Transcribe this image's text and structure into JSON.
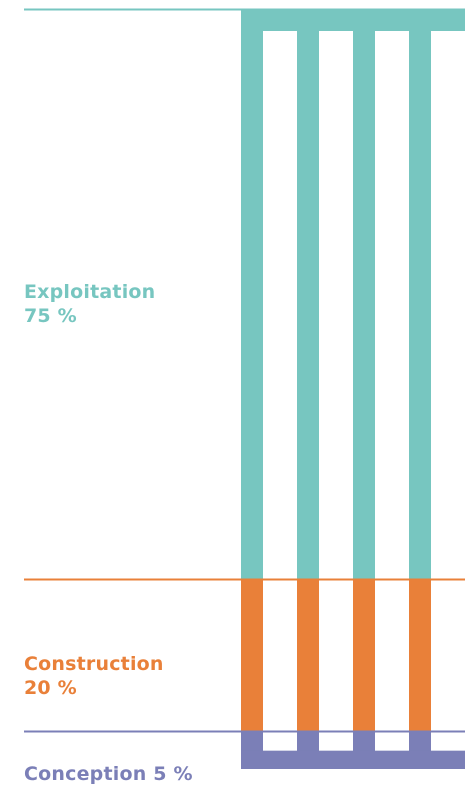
{
  "chart_data": {
    "type": "bar",
    "orientation": "stacked-vertical",
    "segments": [
      {
        "name": "Exploitation",
        "value": 75,
        "unit": "%",
        "label": "Exploitation",
        "value_label": "75 %",
        "color": "#77c6c0"
      },
      {
        "name": "Construction",
        "value": 20,
        "unit": "%",
        "label": "Construction",
        "value_label": "20 %",
        "color": "#e98039"
      },
      {
        "name": "Conception",
        "value": 5,
        "unit": "%",
        "label": "Conception",
        "value_label": "5 %",
        "color": "#7b7fb7"
      }
    ]
  }
}
